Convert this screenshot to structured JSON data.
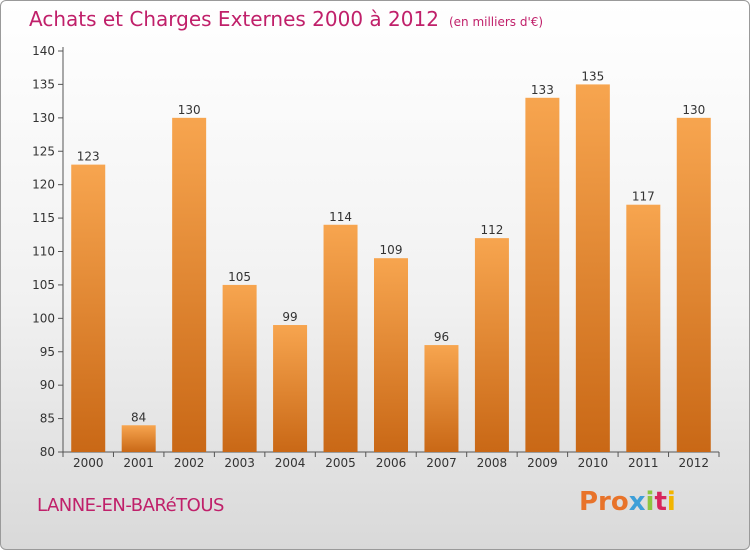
{
  "title": "Achats et Charges Externes 2000 à 2012",
  "unit": "(en milliers d'€)",
  "place": "LANNE-EN-BARéTOUS",
  "logo": [
    "Pro",
    "x",
    "i",
    "t",
    "i"
  ],
  "chart_data": {
    "type": "bar",
    "categories": [
      "2000",
      "2001",
      "2002",
      "2003",
      "2004",
      "2005",
      "2006",
      "2007",
      "2008",
      "2009",
      "2010",
      "2011",
      "2012"
    ],
    "values": [
      123,
      84,
      130,
      105,
      99,
      114,
      109,
      96,
      112,
      133,
      135,
      117,
      130
    ],
    "ylim": [
      80,
      140
    ],
    "yticks": [
      80,
      85,
      90,
      95,
      100,
      105,
      110,
      115,
      120,
      125,
      130,
      135,
      140
    ],
    "grid": false,
    "colors": {
      "bar_top": "#f7a54f",
      "bar_bottom": "#c96816",
      "axis": "#555555",
      "text": "#333333"
    }
  }
}
